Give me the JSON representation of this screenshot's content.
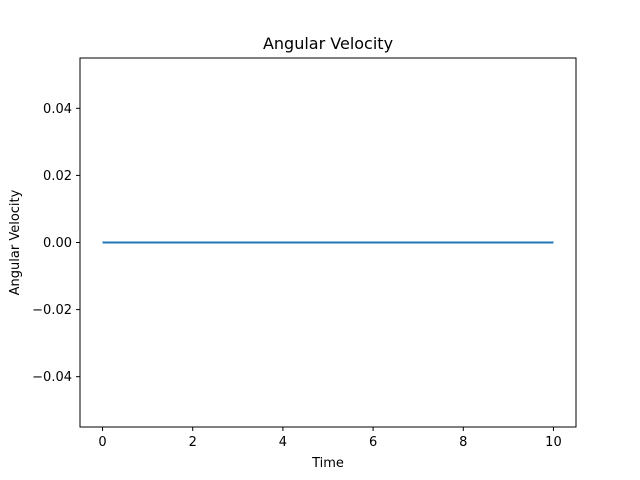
{
  "chart_data": {
    "type": "line",
    "title": "Angular Velocity",
    "xlabel": "Time",
    "ylabel": "Angular Velocity",
    "xlim": [
      -0.5,
      10.5
    ],
    "ylim": [
      -0.055,
      0.055
    ],
    "xticks": [
      0,
      2,
      4,
      6,
      8,
      10
    ],
    "xtick_labels": [
      "0",
      "2",
      "4",
      "6",
      "8",
      "10"
    ],
    "yticks": [
      -0.04,
      -0.02,
      0.0,
      0.02,
      0.04
    ],
    "ytick_labels": [
      "−0.04",
      "−0.02",
      "0.00",
      "0.02",
      "0.04"
    ],
    "grid": false,
    "series": [
      {
        "color": "#1f77b4",
        "x": [
          0,
          10
        ],
        "y": [
          0,
          0
        ]
      }
    ]
  }
}
